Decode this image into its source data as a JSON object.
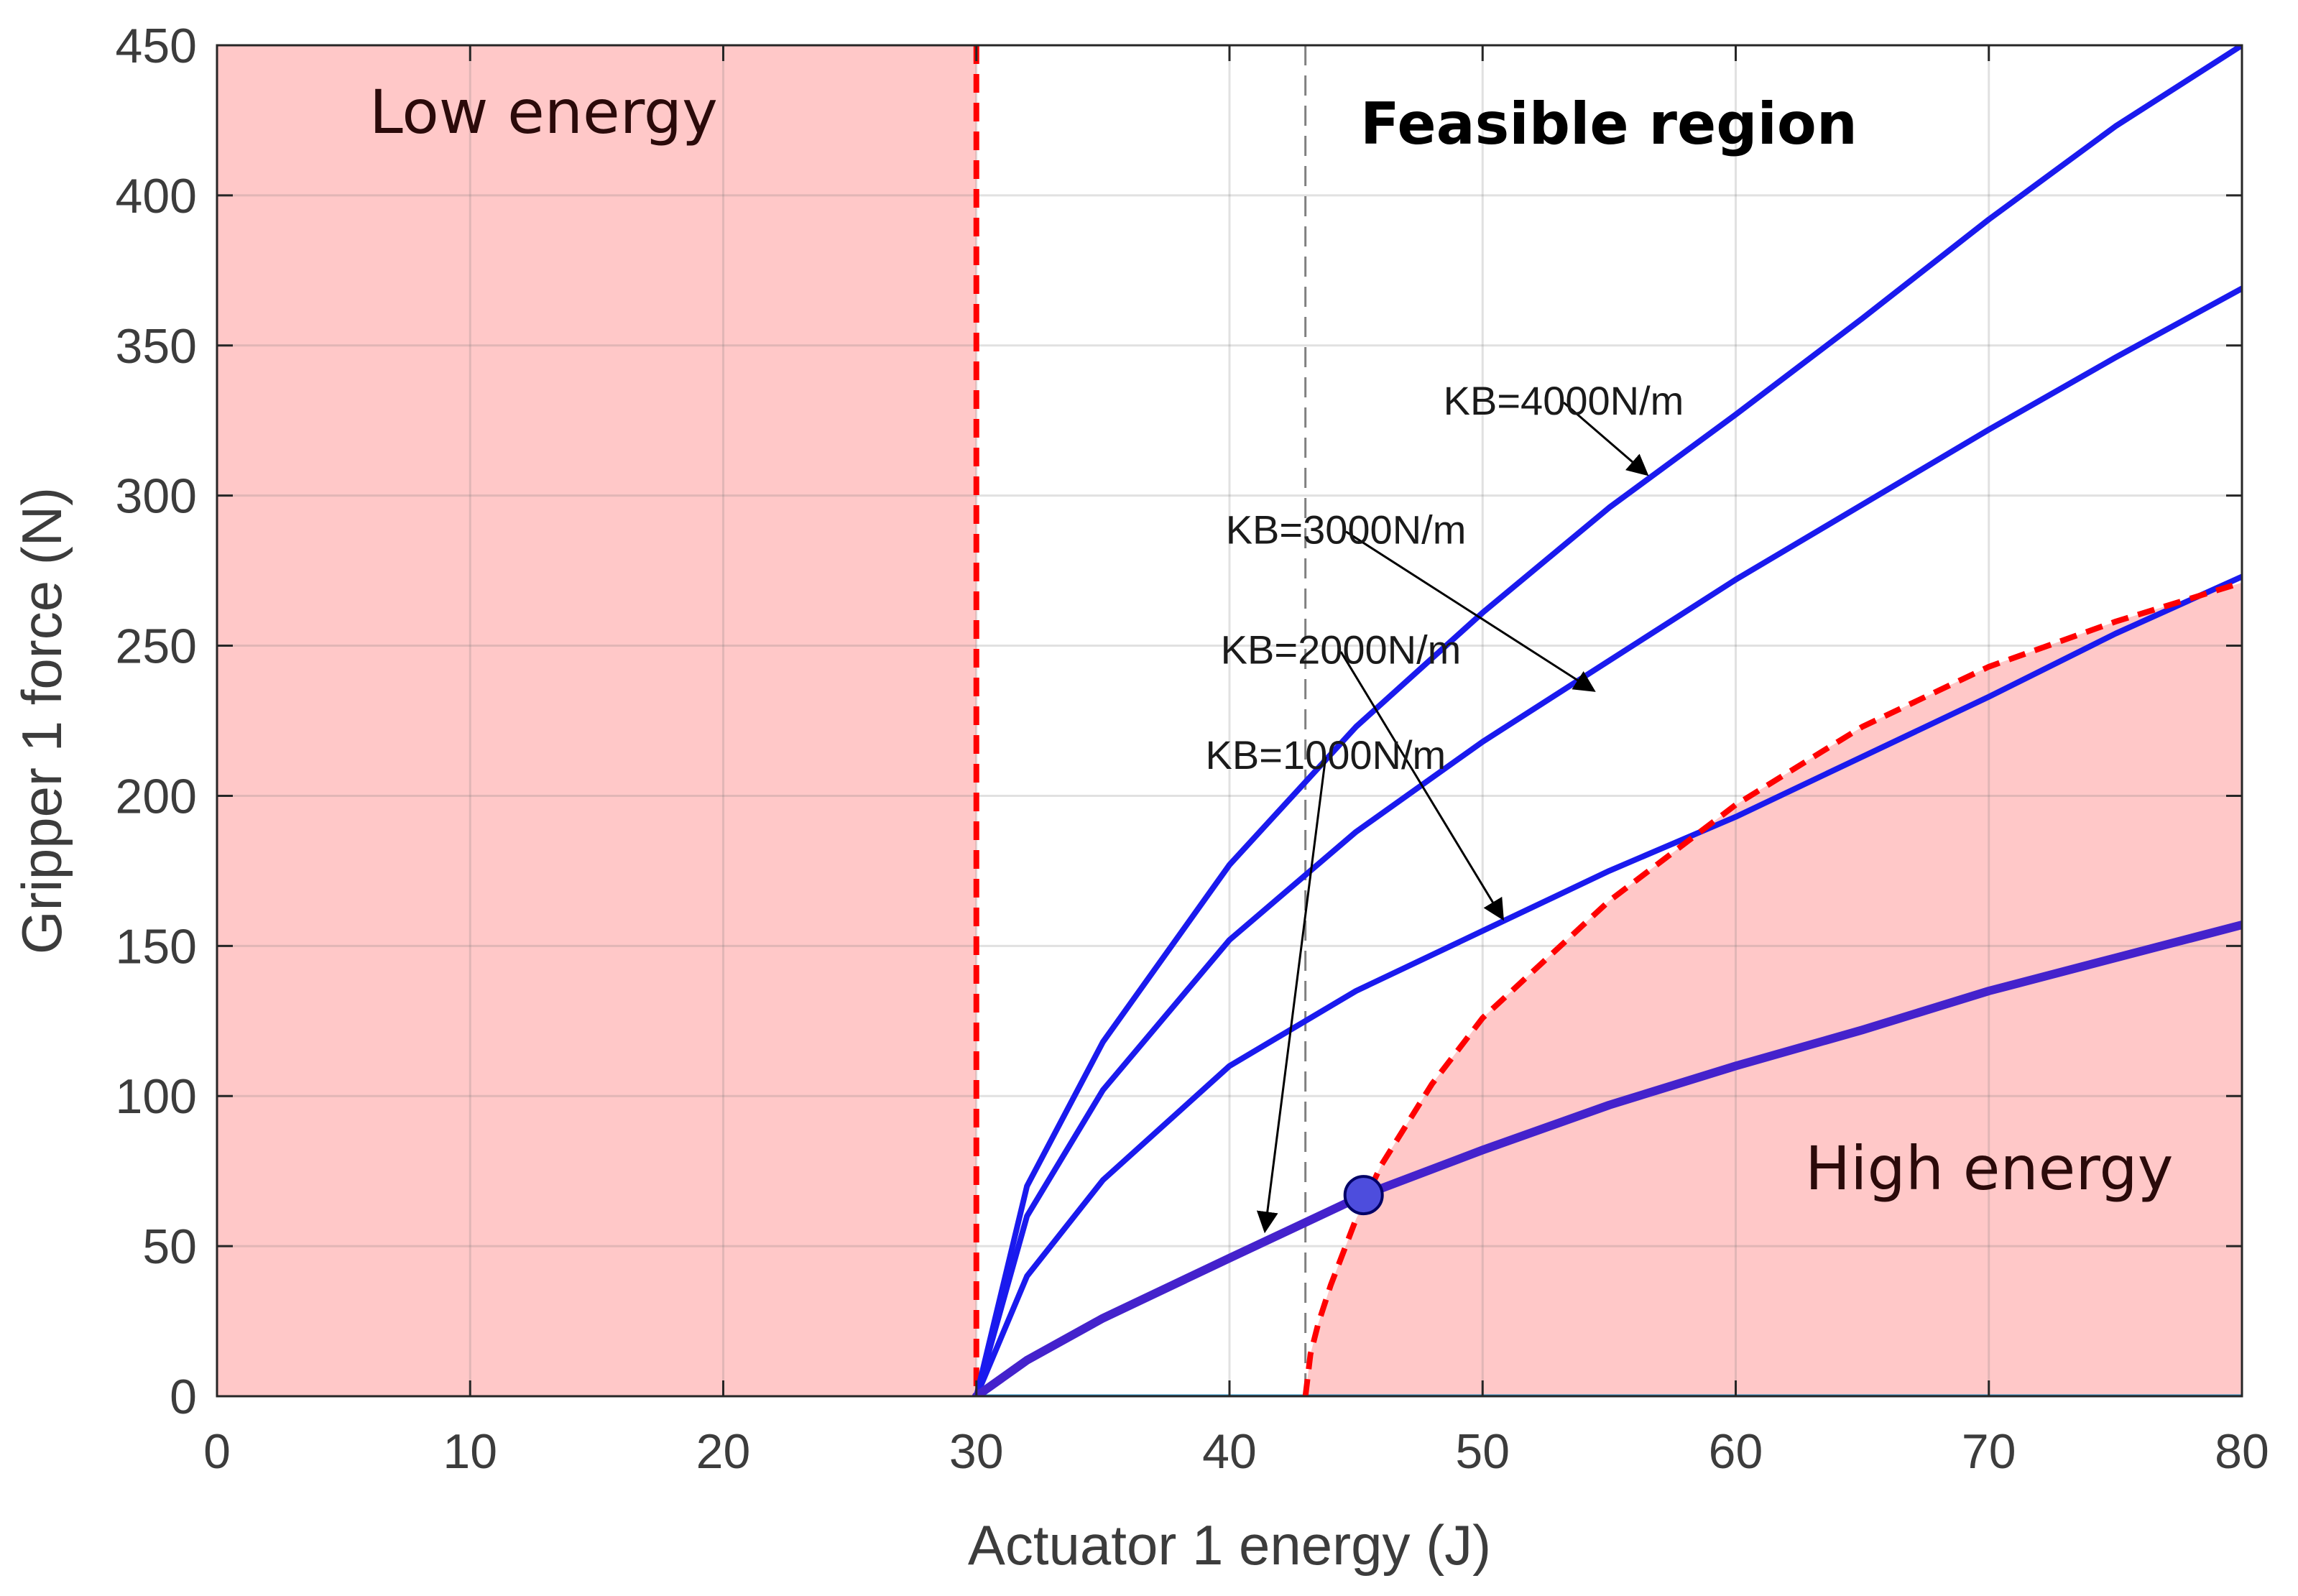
{
  "chart_data": {
    "type": "line",
    "xlabel": "Actuator 1 energy (J)",
    "ylabel": "Gripper 1 force (N)",
    "xlim": [
      0,
      80
    ],
    "ylim": [
      0,
      450
    ],
    "xticks": [
      0,
      10,
      20,
      30,
      40,
      50,
      60,
      70,
      80
    ],
    "yticks": [
      0,
      50,
      100,
      150,
      200,
      250,
      300,
      350,
      400,
      450
    ],
    "grid": true,
    "regions": [
      {
        "name": "Low energy",
        "x_range": [
          0,
          30
        ],
        "color": "#ffc8c8"
      },
      {
        "name": "High energy",
        "boundary": "dashed-curve",
        "color": "#ffc8c8"
      }
    ],
    "region_labels": {
      "low": "Low energy",
      "feasible": "Feasible region",
      "high": "High energy"
    },
    "reference_lines": [
      {
        "type": "vertical",
        "x": 30,
        "style": "dashed",
        "color": "#ff0000"
      },
      {
        "type": "vertical",
        "x": 43,
        "style": "dashed",
        "color": "#808080"
      }
    ],
    "series": [
      {
        "name": "KB=4000N/m",
        "x": [
          30,
          32,
          35,
          40,
          45,
          50,
          55,
          60,
          65,
          70,
          75,
          80
        ],
        "y": [
          0,
          70,
          118,
          177,
          223,
          261,
          296,
          327,
          359,
          392,
          423,
          450
        ],
        "color": "#1a1aee"
      },
      {
        "name": "KB=3000N/m",
        "x": [
          30,
          32,
          35,
          40,
          45,
          50,
          55,
          60,
          65,
          70,
          75,
          80
        ],
        "y": [
          0,
          60,
          102,
          152,
          188,
          218,
          245,
          272,
          297,
          322,
          346,
          369
        ],
        "color": "#1a1aee"
      },
      {
        "name": "KB=2000N/m",
        "x": [
          30,
          32,
          35,
          40,
          45,
          50,
          55,
          60,
          65,
          70,
          75,
          80
        ],
        "y": [
          0,
          40,
          72,
          110,
          135,
          155,
          175,
          193,
          213,
          233,
          254,
          273
        ],
        "color": "#1a1aee"
      },
      {
        "name": "KB=1000N/m",
        "x": [
          30,
          32,
          35,
          40,
          45.3,
          50,
          55,
          60,
          65,
          70,
          75,
          80
        ],
        "y": [
          0,
          12,
          26,
          46,
          67,
          82,
          97,
          110,
          122,
          135,
          146,
          157
        ],
        "color": "#4422cc"
      }
    ],
    "boundary_curve": {
      "name": "High energy boundary",
      "x": [
        43,
        43.2,
        43.5,
        44,
        45,
        46,
        48,
        50,
        55,
        60,
        65,
        70,
        75,
        80
      ],
      "y": [
        0,
        14,
        24,
        37,
        59,
        77,
        104,
        126,
        165,
        197,
        223,
        243,
        258,
        271
      ],
      "color": "#ff0000",
      "style": "dashed"
    },
    "marker": {
      "x": 45.3,
      "y": 67,
      "color": "#4d4ddd"
    },
    "annotations": [
      {
        "text": "KB=4000N/m",
        "series": "KB=4000N/m",
        "text_at": [
          53.2,
          331
        ],
        "arrow_to": [
          56.5,
          307
        ]
      },
      {
        "text": "KB=3000N/m",
        "series": "KB=3000N/m",
        "text_at": [
          44.6,
          288
        ],
        "arrow_to": [
          54.4,
          235
        ]
      },
      {
        "text": "KB=2000N/m",
        "series": "KB=2000N/m",
        "text_at": [
          44.4,
          248
        ],
        "arrow_to": [
          50.8,
          159
        ]
      },
      {
        "text": "KB=1000N/m",
        "series": "KB=1000N/m",
        "text_at": [
          43.8,
          213
        ],
        "arrow_to": [
          41.4,
          55
        ]
      }
    ]
  }
}
